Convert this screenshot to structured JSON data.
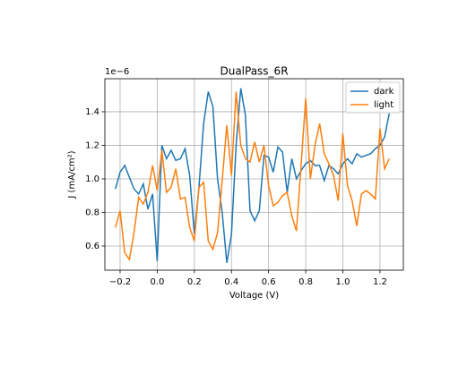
{
  "chart_data": {
    "type": "line",
    "title": "DualPass_6R",
    "xlabel": "Voltage (V)",
    "ylabel": "J (mA/cm²)",
    "offset_text": "1e−6",
    "x": [
      -0.225,
      -0.2,
      -0.175,
      -0.15,
      -0.125,
      -0.1,
      -0.075,
      -0.05,
      -0.025,
      0,
      0.025,
      0.05,
      0.075,
      0.1,
      0.125,
      0.15,
      0.175,
      0.2,
      0.225,
      0.25,
      0.275,
      0.3,
      0.325,
      0.35,
      0.375,
      0.4,
      0.425,
      0.45,
      0.475,
      0.5,
      0.525,
      0.55,
      0.575,
      0.6,
      0.625,
      0.65,
      0.675,
      0.7,
      0.725,
      0.75,
      0.775,
      0.8,
      0.825,
      0.85,
      0.875,
      0.9,
      0.925,
      0.95,
      0.975,
      1.0,
      1.025,
      1.05,
      1.075,
      1.1,
      1.125,
      1.15,
      1.175,
      1.2,
      1.225,
      1.25
    ],
    "series": [
      {
        "name": "dark",
        "color": "#1f77b4",
        "values": [
          0.94,
          1.04,
          1.08,
          1.01,
          0.94,
          0.91,
          0.97,
          0.82,
          0.91,
          0.51,
          1.2,
          1.12,
          1.17,
          1.11,
          1.12,
          1.18,
          1.02,
          0.67,
          0.95,
          1.33,
          1.52,
          1.43,
          1.0,
          0.8,
          0.5,
          0.67,
          1.2,
          1.54,
          1.38,
          0.81,
          0.75,
          0.81,
          1.14,
          1.13,
          1.04,
          1.19,
          1.16,
          0.92,
          1.12,
          1.0,
          1.05,
          1.09,
          1.11,
          1.08,
          1.08,
          0.99,
          1.08,
          1.06,
          1.03,
          1.09,
          1.12,
          1.09,
          1.15,
          1.13,
          1.14,
          1.15,
          1.18,
          1.2,
          1.25,
          1.39
        ]
      },
      {
        "name": "light",
        "color": "#ff7f0e",
        "values": [
          0.71,
          0.81,
          0.56,
          0.52,
          0.68,
          0.89,
          0.85,
          0.92,
          1.08,
          0.93,
          1.17,
          0.92,
          0.95,
          1.06,
          0.88,
          0.89,
          0.71,
          0.63,
          0.95,
          0.98,
          0.63,
          0.58,
          0.68,
          0.99,
          1.32,
          1.02,
          1.52,
          1.2,
          1.12,
          1.1,
          1.22,
          1.1,
          1.2,
          0.96,
          0.84,
          0.86,
          0.9,
          0.92,
          0.78,
          0.69,
          1.08,
          1.48,
          1.0,
          1.2,
          1.33,
          1.15,
          1.09,
          1.02,
          0.87,
          1.27,
          0.96,
          0.87,
          0.72,
          0.91,
          0.93,
          0.91,
          0.88,
          1.3,
          1.06,
          1.12
        ]
      }
    ],
    "xlim": [
      -0.282,
      1.326
    ],
    "ylim": [
      0.456,
      1.597
    ],
    "xticks": [
      {
        "value": -0.2,
        "label": "−0.2"
      },
      {
        "value": 0,
        "label": "0.0"
      },
      0.2,
      0.4,
      0.6,
      0.8,
      {
        "value": 1,
        "label": "1.0"
      },
      1.2
    ],
    "yticks": [
      0.6,
      0.8,
      {
        "value": 1,
        "label": "1.0"
      },
      1.2,
      1.4
    ],
    "grid": true,
    "legend": "upper right"
  }
}
